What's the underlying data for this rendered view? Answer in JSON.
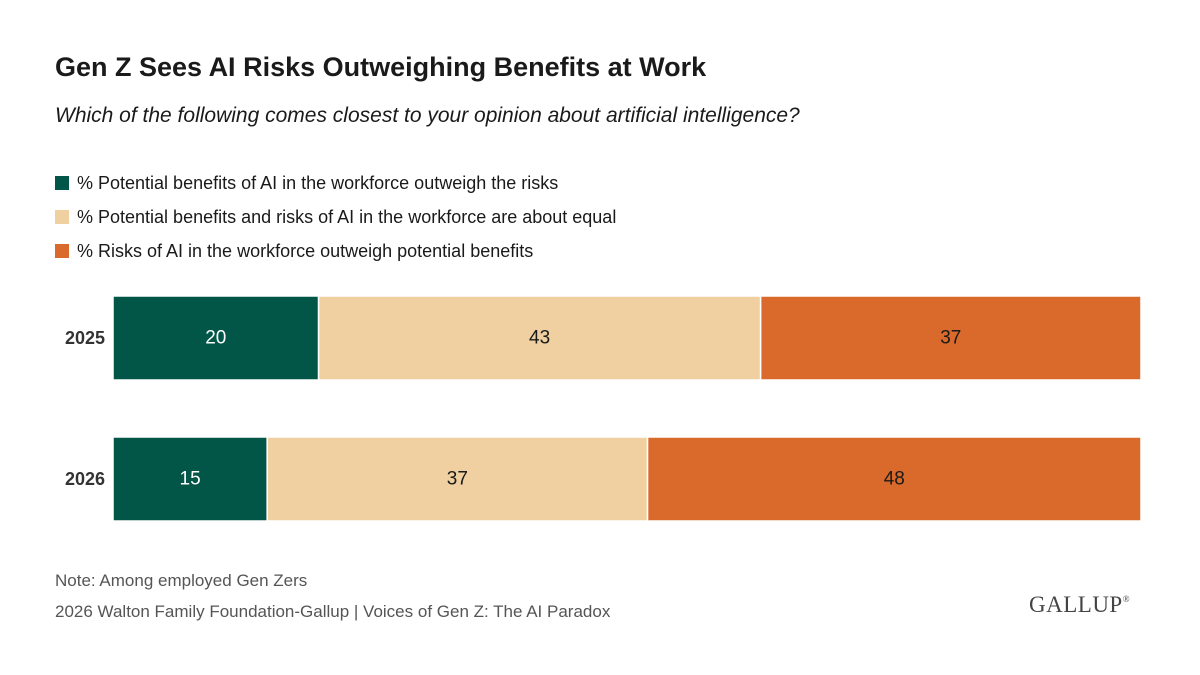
{
  "title": "Gen Z Sees AI Risks Outweighing Benefits at Work",
  "subtitle": "Which of the following comes closest to your opinion about artificial intelligence?",
  "legend": [
    {
      "label": "% Potential benefits of AI in the workforce outweigh the risks",
      "color": "#015647"
    },
    {
      "label": "% Potential benefits and risks of AI in the workforce are about equal",
      "color": "#F0D0A0"
    },
    {
      "label": "% Risks of AI in the workforce outweigh potential benefits",
      "color": "#DA6A2B"
    }
  ],
  "chart_data": {
    "type": "bar",
    "orientation": "horizontal",
    "stacked": true,
    "categories": [
      "2025",
      "2026"
    ],
    "series": [
      {
        "name": "% Potential benefits of AI in the workforce outweigh the risks",
        "color": "#015647",
        "label_color": "#ffffff",
        "values": [
          20,
          15
        ]
      },
      {
        "name": "% Potential benefits and risks of AI in the workforce are about equal",
        "color": "#F0D0A0",
        "label_color": "#1a1a1a",
        "values": [
          43,
          37
        ]
      },
      {
        "name": "% Risks of AI in the workforce outweigh potential benefits",
        "color": "#DA6A2B",
        "label_color": "#1a1a1a",
        "values": [
          37,
          48
        ]
      }
    ],
    "xlim": [
      0,
      100
    ],
    "grid": false,
    "legend_position": "top-left"
  },
  "note": "Note: Among employed Gen Zers",
  "source": "2026 Walton Family Foundation-Gallup | Voices of Gen Z: The AI Paradox",
  "logo": {
    "text": "GALLUP",
    "mark": "®"
  }
}
